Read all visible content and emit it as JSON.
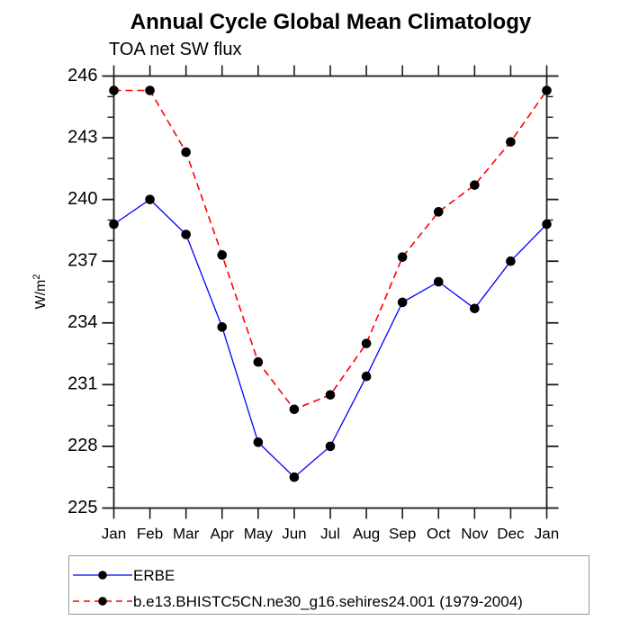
{
  "title": "Annual Cycle Global Mean Climatology",
  "subtitle": "TOA net SW flux",
  "y_axis": {
    "label_base": "W/m",
    "label_exponent": "2",
    "tick_labels": [
      "225",
      "228",
      "231",
      "234",
      "237",
      "240",
      "243",
      "246"
    ]
  },
  "x_axis": {
    "tick_labels": [
      "Jan",
      "Feb",
      "Mar",
      "Apr",
      "May",
      "Jun",
      "Jul",
      "Aug",
      "Sep",
      "Oct",
      "Nov",
      "Dec",
      "Jan"
    ]
  },
  "colors": {
    "background": "#ffffff",
    "axis": "#1c1c1c",
    "marker": "#000000",
    "erbe_line": "#0000ff",
    "model_line": "#ff0000"
  },
  "chart_data": {
    "type": "line",
    "title": "Annual Cycle Global Mean Climatology",
    "subtitle": "TOA net SW flux",
    "xlabel": "",
    "ylabel": "W/m^2",
    "categories": [
      "Jan",
      "Feb",
      "Mar",
      "Apr",
      "May",
      "Jun",
      "Jul",
      "Aug",
      "Sep",
      "Oct",
      "Nov",
      "Dec",
      "Jan"
    ],
    "ylim": [
      225,
      246
    ],
    "ytick_major_interval": 3,
    "ytick_minor_interval": 1,
    "grid": false,
    "frame": "full-box",
    "legend_position": "bottom-left-box",
    "series": [
      {
        "name": "ERBE",
        "color": "#0000ff",
        "line_style": "solid",
        "marker": "filled-circle",
        "marker_color": "#000000",
        "values": [
          238.8,
          240.0,
          238.3,
          233.8,
          228.2,
          226.5,
          228.0,
          231.4,
          235.0,
          236.0,
          234.7,
          237.0,
          238.8
        ]
      },
      {
        "name": "b.e13.BHISTC5CN.ne30_g16.sehires24.001 (1979-2004)",
        "color": "#ff0000",
        "line_style": "dashed",
        "marker": "filled-circle",
        "marker_color": "#000000",
        "values": [
          245.3,
          245.3,
          242.3,
          237.3,
          232.1,
          229.8,
          230.5,
          233.0,
          237.2,
          239.4,
          240.7,
          242.8,
          245.3
        ]
      }
    ]
  }
}
